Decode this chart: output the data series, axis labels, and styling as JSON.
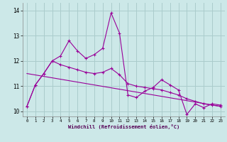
{
  "xlabel": "Windchill (Refroidissement éolien,°C)",
  "background_color": "#cce8e8",
  "grid_color": "#aacccc",
  "line_color": "#990099",
  "xlim": [
    -0.5,
    23.5
  ],
  "ylim": [
    9.8,
    14.3
  ],
  "xticks": [
    0,
    1,
    2,
    3,
    4,
    5,
    6,
    7,
    8,
    9,
    10,
    11,
    12,
    13,
    14,
    15,
    16,
    17,
    18,
    19,
    20,
    21,
    22,
    23
  ],
  "yticks": [
    10,
    11,
    12,
    13,
    14
  ],
  "series1_x": [
    0,
    1,
    2,
    3,
    4,
    5,
    6,
    7,
    8,
    9,
    10,
    11,
    12,
    13,
    14,
    15,
    16,
    17,
    18,
    19,
    20,
    21,
    22,
    23
  ],
  "series1_y": [
    10.2,
    11.05,
    11.5,
    12.0,
    12.2,
    12.8,
    12.4,
    12.1,
    12.25,
    12.5,
    13.9,
    13.1,
    10.65,
    10.55,
    10.8,
    10.95,
    11.25,
    11.05,
    10.85,
    9.88,
    10.3,
    10.15,
    10.3,
    10.25
  ],
  "series2_x": [
    0,
    1,
    2,
    3,
    4,
    5,
    6,
    7,
    8,
    9,
    10,
    11,
    12,
    13,
    14,
    15,
    16,
    17,
    18,
    19,
    20,
    21,
    22,
    23
  ],
  "series2_y": [
    10.2,
    11.05,
    11.5,
    12.0,
    11.85,
    11.75,
    11.65,
    11.55,
    11.5,
    11.55,
    11.7,
    11.45,
    11.1,
    11.0,
    10.95,
    10.9,
    10.85,
    10.75,
    10.65,
    10.5,
    10.4,
    10.3,
    10.25,
    10.2
  ],
  "series3_x": [
    0,
    23
  ],
  "series3_y": [
    11.5,
    10.2
  ]
}
